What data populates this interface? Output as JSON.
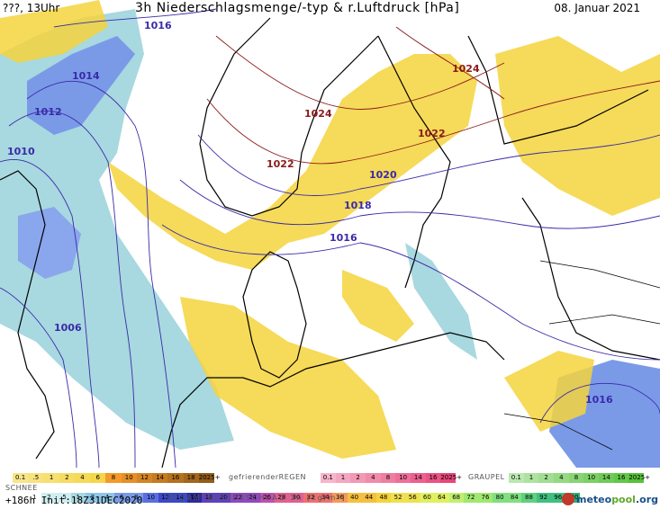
{
  "header": {
    "left": "???, 13Uhr",
    "title": "3h Niederschlagsmenge/-typ & r.Luftdruck [hPa]",
    "date": "08. Januar 2021"
  },
  "isobars": [
    {
      "label": "1016",
      "color": "#3a2aa8"
    },
    {
      "label": "1014",
      "color": "#3a2aa8"
    },
    {
      "label": "1012",
      "color": "#3a2aa8"
    },
    {
      "label": "1010",
      "color": "#3a2aa8"
    },
    {
      "label": "1006",
      "color": "#3a2aa8"
    },
    {
      "label": "1024",
      "color": "#8b1a1a"
    },
    {
      "label": "1024",
      "color": "#8b1a1a"
    },
    {
      "label": "1022",
      "color": "#8b1a1a"
    },
    {
      "label": "1022",
      "color": "#8b1a1a"
    },
    {
      "label": "1020",
      "color": "#3a2aa8"
    },
    {
      "label": "1018",
      "color": "#3a2aa8"
    },
    {
      "label": "1016",
      "color": "#3a2aa8"
    },
    {
      "label": "1016",
      "color": "#3a2aa8"
    }
  ],
  "legend": {
    "rain_label": "",
    "rain_values": [
      "0.1",
      ".5",
      "1",
      "2",
      "4",
      "6",
      "8",
      "10",
      "12",
      "14",
      "16",
      "18",
      "2025+"
    ],
    "freezing_label": "gefrierenderREGEN",
    "freezing_values": [
      "0.1",
      "1",
      "2",
      "4",
      "8",
      "10",
      "14",
      "16",
      "2025+"
    ],
    "graupel_label": "GRAUPEL",
    "graupel_values": [
      "0.1",
      "1",
      "2",
      "4",
      "8",
      "10",
      "14",
      "16",
      "2025+"
    ],
    "snow_label": "SCHNEE",
    "total_values": [
      "",
      "1",
      "2",
      ".5",
      "1",
      "2",
      "4",
      "6",
      "8",
      "10",
      "12",
      "14",
      "16",
      "18",
      "20",
      "22",
      "24",
      "26",
      "28",
      "30",
      "32",
      "34",
      "36",
      "40",
      "44",
      "48",
      "52",
      "56",
      "60",
      "64",
      "68",
      "72",
      "76",
      "80",
      "84",
      "88",
      "92",
      "96",
      "100"
    ],
    "total_label": "GESAMTNIEDERSCHLAG 3h [kg/m²]",
    "colors": {
      "rain": "#f5d33c",
      "freezing": "#e8457a",
      "graupel": "#56c23a",
      "snow_light": "#a8d8e0",
      "snow_dark": "#5a6fe0"
    }
  },
  "footer": {
    "init": "+186h  Init:18Z31DEC2020",
    "logo_main": "meteo",
    "logo_accent": "pool",
    "logo_suffix": ".org"
  }
}
